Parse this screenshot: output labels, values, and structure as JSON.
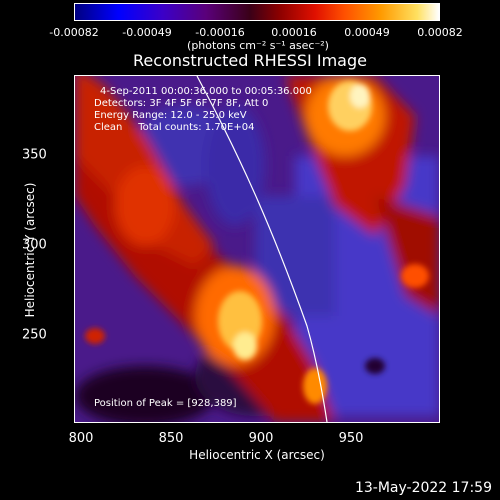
{
  "colorbar": {
    "ticks": [
      "-0.00082",
      "-0.00049",
      "-0.00016",
      "0.00016",
      "0.00049",
      "0.00082"
    ],
    "units": "(photons cm⁻² s⁻¹ asec⁻²)"
  },
  "title": "Reconstructed RHESSI Image",
  "info": {
    "time_range": "4-Sep-2011 00:00:36.000 to 00:05:36.000",
    "detectors": "Detectors: 3F 4F 5F 6F 7F 8F, Att 0",
    "energy": "Energy Range: 12.0 - 25.0 keV",
    "clean": "Clean     Total counts: 1.70E+04",
    "peak": "Position of Peak = [928,389]"
  },
  "axes": {
    "xlabel": "Heliocentric X (arcsec)",
    "ylabel": "Heliocentric Y (arcsec)",
    "xticks": [
      "800",
      "850",
      "900",
      "950"
    ],
    "yticks": [
      "250",
      "300",
      "350"
    ]
  },
  "timestamp": "13-May-2022 17:59"
}
